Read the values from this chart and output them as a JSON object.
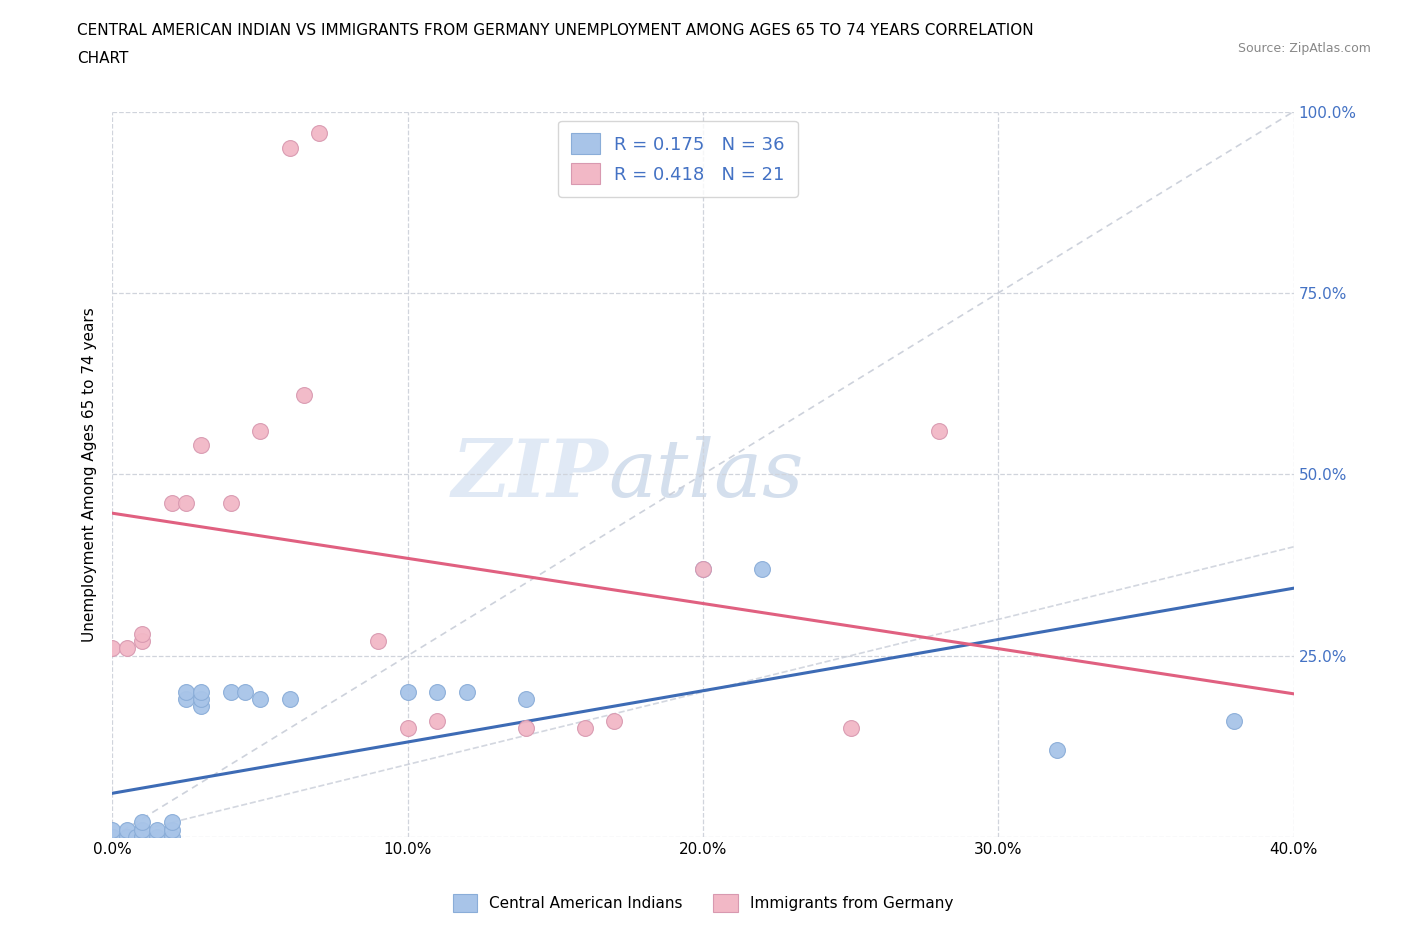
{
  "title_line1": "CENTRAL AMERICAN INDIAN VS IMMIGRANTS FROM GERMANY UNEMPLOYMENT AMONG AGES 65 TO 74 YEARS CORRELATION",
  "title_line2": "CHART",
  "source": "Source: ZipAtlas.com",
  "ylabel": "Unemployment Among Ages 65 to 74 years",
  "xlim": [
    0.0,
    0.4
  ],
  "ylim": [
    0.0,
    1.0
  ],
  "xticks": [
    0.0,
    0.1,
    0.2,
    0.3,
    0.4
  ],
  "xticklabels": [
    "0.0%",
    "10.0%",
    "20.0%",
    "30.0%",
    "40.0%"
  ],
  "yticks": [
    0.0,
    0.25,
    0.5,
    0.75,
    1.0
  ],
  "right_yticklabels": [
    "",
    "25.0%",
    "50.0%",
    "75.0%",
    "100.0%"
  ],
  "blue_color": "#a8c4e8",
  "pink_color": "#f2b8c6",
  "blue_line_color": "#3d6bb5",
  "pink_line_color": "#e06080",
  "ref_line_color": "#c8cdd8",
  "R_blue": 0.175,
  "N_blue": 36,
  "R_pink": 0.418,
  "N_pink": 21,
  "legend_text_color": "#4472c4",
  "watermark_zip": "ZIP",
  "watermark_atlas": "atlas",
  "blue_scatter_x": [
    0.0,
    0.0,
    0.0,
    0.0,
    0.0,
    0.0,
    0.005,
    0.005,
    0.005,
    0.008,
    0.01,
    0.01,
    0.01,
    0.01,
    0.015,
    0.015,
    0.02,
    0.02,
    0.02,
    0.025,
    0.025,
    0.03,
    0.03,
    0.03,
    0.04,
    0.045,
    0.05,
    0.06,
    0.1,
    0.11,
    0.12,
    0.14,
    0.2,
    0.22,
    0.32,
    0.38
  ],
  "blue_scatter_y": [
    0.0,
    0.0,
    0.0,
    0.0,
    0.0,
    0.01,
    0.0,
    0.0,
    0.01,
    0.0,
    0.0,
    0.0,
    0.01,
    0.02,
    0.0,
    0.01,
    0.0,
    0.01,
    0.02,
    0.19,
    0.2,
    0.18,
    0.19,
    0.2,
    0.2,
    0.2,
    0.19,
    0.19,
    0.2,
    0.2,
    0.2,
    0.19,
    0.37,
    0.37,
    0.12,
    0.16
  ],
  "pink_scatter_x": [
    0.0,
    0.005,
    0.01,
    0.01,
    0.02,
    0.025,
    0.03,
    0.04,
    0.05,
    0.06,
    0.065,
    0.07,
    0.09,
    0.1,
    0.11,
    0.14,
    0.16,
    0.17,
    0.2,
    0.25,
    0.28
  ],
  "pink_scatter_y": [
    0.26,
    0.26,
    0.27,
    0.28,
    0.46,
    0.46,
    0.54,
    0.46,
    0.56,
    0.95,
    0.61,
    0.97,
    0.27,
    0.15,
    0.16,
    0.15,
    0.15,
    0.16,
    0.37,
    0.15,
    0.56
  ]
}
